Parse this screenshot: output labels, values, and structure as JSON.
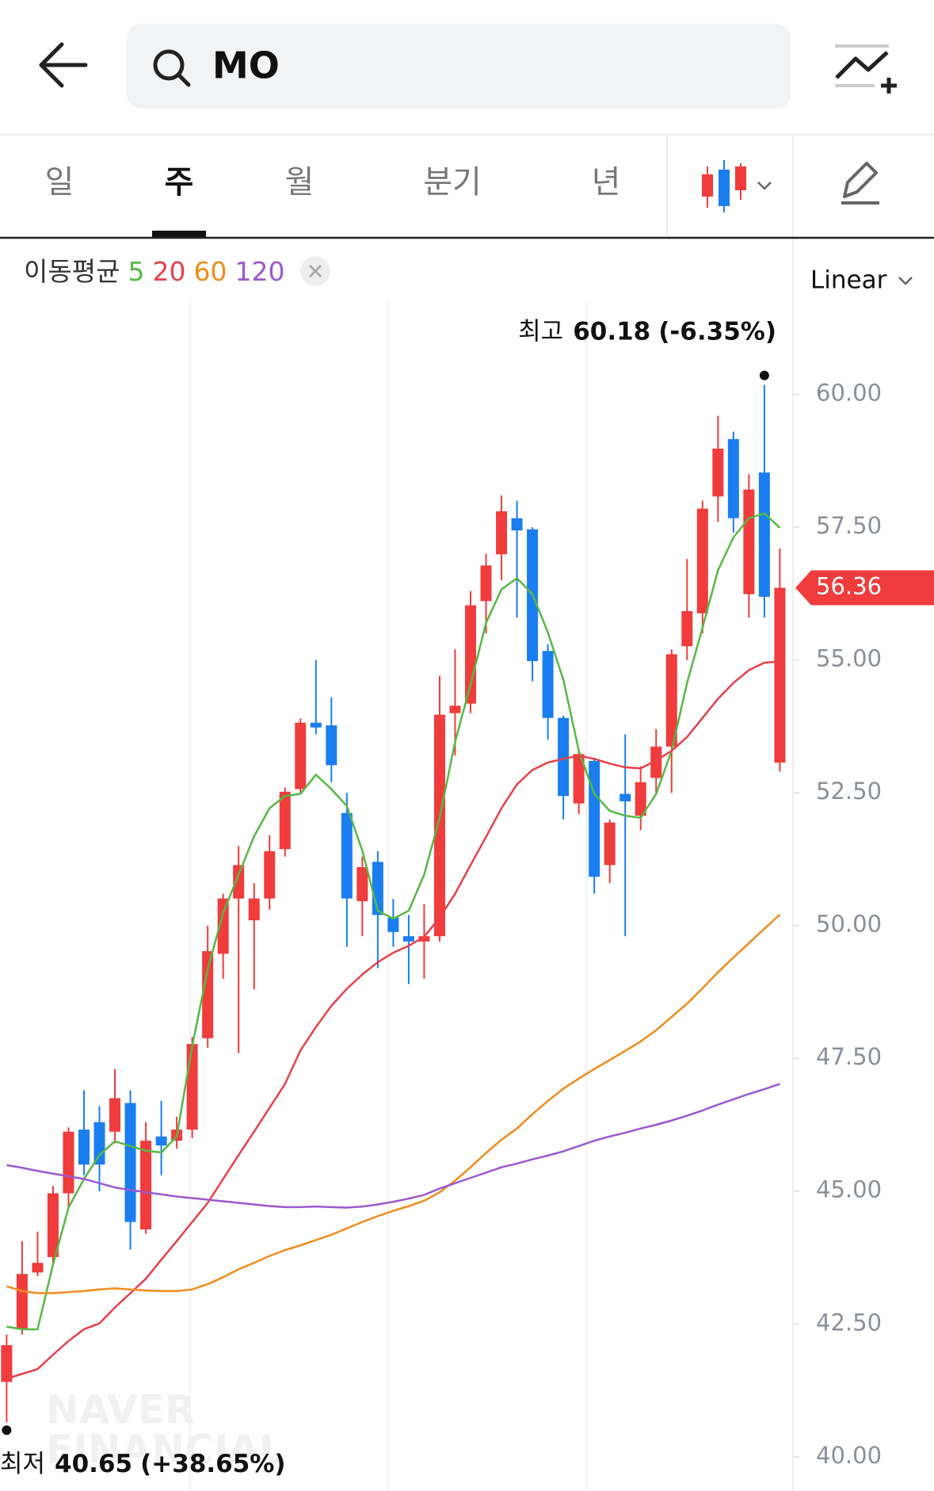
{
  "search": "MO",
  "tabs": [
    "일",
    "주",
    "월",
    "분기",
    "년"
  ],
  "selected_tab": 1,
  "ma_label": "이동평균",
  "scale_mode": "Linear",
  "watermark": [
    "NAVER",
    "FINANCIAL"
  ],
  "chart_data": {
    "type": "candlestick",
    "up_color": "#f03c3c",
    "down_color": "#1a7ef0",
    "ylim": [
      39.37,
      62.86
    ],
    "yticks": [
      {
        "value": 40,
        "label": "40.00"
      },
      {
        "value": 42.5,
        "label": "42.50"
      },
      {
        "value": 45,
        "label": "45.00"
      },
      {
        "value": 47.5,
        "label": "47.50"
      },
      {
        "value": 50,
        "label": "50.00"
      },
      {
        "value": 52.5,
        "label": "52.50"
      },
      {
        "value": 55,
        "label": "55.00"
      },
      {
        "value": 57.5,
        "label": "57.50"
      },
      {
        "value": 60,
        "label": "60.00"
      }
    ],
    "open": [
      41.41,
      42.4,
      43.47,
      43.76,
      44.96,
      46.16,
      46.3,
      46.12,
      46.66,
      44.28,
      46.03,
      45.95,
      46.16,
      47.88,
      49.47,
      50.51,
      50.1,
      50.51,
      51.44,
      52.57,
      53.82,
      53.77,
      52.12,
      50.46,
      51.2,
      50.15,
      49.8,
      49.7,
      49.8,
      54.0,
      54.18,
      56.11,
      56.99,
      57.67,
      57.46,
      55.17,
      53.91,
      52.3,
      53.1,
      51.14,
      52.48,
      52.07,
      52.78,
      53.37,
      55.26,
      55.88,
      58.08,
      59.16,
      56.24,
      58.53,
      53.07
    ],
    "high": [
      42.3,
      44.06,
      44.24,
      45.1,
      46.2,
      46.9,
      46.6,
      47.3,
      46.9,
      46.3,
      46.7,
      46.4,
      47.9,
      50.0,
      50.6,
      51.5,
      50.8,
      51.7,
      52.6,
      53.9,
      55.0,
      54.3,
      52.5,
      51.3,
      51.4,
      50.5,
      50.2,
      50.4,
      54.7,
      55.2,
      56.3,
      57.0,
      58.1,
      58.0,
      57.5,
      55.3,
      53.95,
      53.3,
      53.15,
      52.0,
      53.6,
      53.0,
      53.7,
      55.2,
      56.9,
      58.0,
      59.6,
      59.3,
      58.5,
      60.18,
      57.1
    ],
    "low": [
      40.65,
      42.3,
      43.4,
      43.6,
      44.7,
      45.3,
      45.0,
      45.9,
      43.9,
      44.2,
      45.3,
      45.8,
      46.0,
      47.7,
      49.0,
      47.6,
      48.8,
      50.3,
      51.3,
      52.5,
      53.6,
      52.7,
      49.6,
      49.8,
      49.2,
      49.6,
      48.9,
      49.0,
      49.7,
      53.2,
      54.0,
      55.5,
      56.5,
      55.8,
      54.6,
      53.5,
      52.0,
      52.1,
      50.6,
      50.8,
      49.8,
      51.8,
      52.5,
      52.5,
      55.0,
      55.5,
      57.6,
      57.4,
      55.8,
      55.8,
      52.9
    ],
    "close": [
      42.1,
      43.44,
      43.65,
      44.96,
      46.12,
      45.5,
      45.5,
      46.75,
      44.42,
      45.95,
      45.86,
      46.16,
      47.77,
      49.52,
      50.51,
      51.14,
      50.51,
      51.4,
      52.52,
      53.82,
      53.73,
      53.02,
      50.51,
      51.1,
      50.2,
      49.88,
      49.7,
      49.8,
      53.97,
      54.14,
      56.03,
      56.78,
      57.8,
      57.44,
      54.98,
      53.91,
      52.44,
      53.23,
      50.92,
      51.94,
      52.34,
      52.7,
      53.37,
      55.11,
      55.92,
      57.85,
      58.98,
      57.67,
      58.21,
      56.19,
      56.36
    ],
    "moving_averages": [
      {
        "name": "5",
        "color": "#55b944",
        "values": [
          42.45,
          42.4,
          42.4,
          43.62,
          44.69,
          45.23,
          45.68,
          45.94,
          45.85,
          45.76,
          45.73,
          46.03,
          47.73,
          49.17,
          50.24,
          50.96,
          51.68,
          52.21,
          52.44,
          52.48,
          52.84,
          52.57,
          52.25,
          51.41,
          50.28,
          50.13,
          50.28,
          50.96,
          52.03,
          53.46,
          54.54,
          55.7,
          56.33,
          56.54,
          56.24,
          55.52,
          54.63,
          53.29,
          52.48,
          52.16,
          52.07,
          52.03,
          52.48,
          53.29,
          54.57,
          55.61,
          56.69,
          57.31,
          57.67,
          57.76,
          57.49
        ]
      },
      {
        "name": "20",
        "color": "#e8414a",
        "values": [
          41.47,
          41.56,
          41.65,
          41.92,
          42.18,
          42.4,
          42.51,
          42.81,
          43.08,
          43.35,
          43.71,
          44.06,
          44.42,
          44.78,
          45.23,
          45.68,
          46.12,
          46.57,
          47.02,
          47.65,
          48.09,
          48.49,
          48.81,
          49.08,
          49.31,
          49.49,
          49.62,
          49.79,
          50.15,
          50.6,
          51.14,
          51.67,
          52.21,
          52.66,
          52.93,
          53.07,
          53.14,
          53.2,
          53.14,
          53.05,
          52.98,
          52.96,
          53.11,
          53.29,
          53.55,
          53.91,
          54.27,
          54.57,
          54.81,
          54.95,
          54.97
        ]
      },
      {
        "name": "60",
        "color": "#f08c1e",
        "values": [
          43.21,
          43.12,
          43.08,
          43.08,
          43.1,
          43.12,
          43.15,
          43.17,
          43.15,
          43.13,
          43.12,
          43.12,
          43.15,
          43.25,
          43.38,
          43.53,
          43.65,
          43.78,
          43.89,
          43.98,
          44.08,
          44.18,
          44.3,
          44.42,
          44.53,
          44.63,
          44.72,
          44.82,
          44.98,
          45.2,
          45.45,
          45.72,
          45.97,
          46.18,
          46.45,
          46.7,
          46.93,
          47.12,
          47.3,
          47.47,
          47.64,
          47.82,
          48.03,
          48.28,
          48.53,
          48.82,
          49.12,
          49.4,
          49.67,
          49.94,
          50.21
        ]
      },
      {
        "name": "120",
        "color": "#9b59d0",
        "values": [
          45.49,
          45.44,
          45.38,
          45.33,
          45.28,
          45.23,
          45.15,
          45.07,
          45.02,
          44.98,
          44.94,
          44.9,
          44.87,
          44.84,
          44.81,
          44.78,
          44.75,
          44.72,
          44.7,
          44.7,
          44.71,
          44.7,
          44.69,
          44.71,
          44.75,
          44.8,
          44.86,
          44.93,
          45.05,
          45.15,
          45.25,
          45.35,
          45.45,
          45.52,
          45.6,
          45.67,
          45.75,
          45.85,
          45.95,
          46.03,
          46.1,
          46.18,
          46.25,
          46.33,
          46.42,
          46.52,
          46.63,
          46.73,
          46.83,
          46.92,
          47.02
        ]
      }
    ],
    "last_price": {
      "value": 56.36,
      "label": "56.36"
    },
    "annotations": {
      "high": {
        "label": "최고",
        "value": 60.18,
        "change": "(-6.35%)"
      },
      "low": {
        "label": "최저",
        "value": 40.65,
        "change": "(+38.65%)"
      }
    }
  }
}
